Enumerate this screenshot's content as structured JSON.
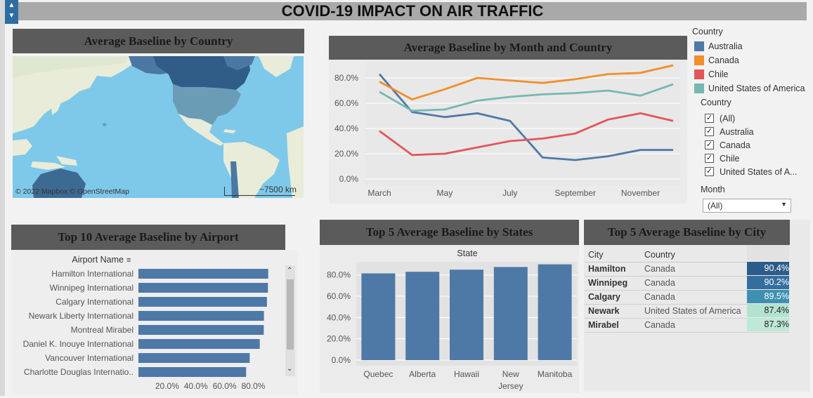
{
  "dashboard_title": "COVID-19 IMPACT ON AIR TRAFFIC",
  "map": {
    "title": "Average Baseline by Country",
    "attribution": "© 2022 Mapbox © OpenStreetMap",
    "scale": "~7500 km"
  },
  "legend": {
    "title": "Country",
    "items": [
      {
        "label": "Australia",
        "color": "#4e79a7"
      },
      {
        "label": "Canada",
        "color": "#f28e2b"
      },
      {
        "label": "Chile",
        "color": "#e15759"
      },
      {
        "label": "United States of America",
        "color": "#76b7b2"
      }
    ]
  },
  "country_filter": {
    "title": "Country",
    "items": [
      "(All)",
      "Australia",
      "Canada",
      "Chile",
      "United States of A..."
    ]
  },
  "month_filter": {
    "title": "Month",
    "value": "(All)"
  },
  "line_chart_title": "Average Baseline by Month and Country",
  "airport_chart_title": "Top 10 Average Baseline by Airport",
  "airport_axis_header": "Airport Name",
  "states_chart_title": "Top 5 Average Baseline by States",
  "states_axis_header": "State",
  "city_table": {
    "title": "Top 5 Average Baseline by City",
    "headers": [
      "City",
      "Country"
    ],
    "rows": [
      {
        "city": "Hamilton",
        "country": "Canada",
        "value": "90.4%",
        "color": "#2b5c8a"
      },
      {
        "city": "Winnipeg",
        "country": "Canada",
        "value": "90.2%",
        "color": "#356d9e"
      },
      {
        "city": "Calgary",
        "country": "Canada",
        "value": "89.5%",
        "color": "#3f8fb0"
      },
      {
        "city": "Newark",
        "country": "United States of America",
        "value": "87.4%",
        "color": "#b3e3cf"
      },
      {
        "city": "Mirabel",
        "country": "Canada",
        "value": "87.3%",
        "color": "#bfe8d6"
      }
    ]
  },
  "chart_data": [
    {
      "type": "line",
      "title": "Average Baseline by Month and Country",
      "x": [
        "March",
        "April",
        "May",
        "June",
        "July",
        "August",
        "September",
        "October",
        "November",
        "December"
      ],
      "x_tick_labels": [
        "March",
        "May",
        "July",
        "September",
        "November"
      ],
      "y_ticks": [
        "0.0%",
        "20.0%",
        "40.0%",
        "60.0%",
        "80.0%"
      ],
      "ylim": [
        0,
        0.9
      ],
      "grid": true,
      "series": [
        {
          "name": "Australia",
          "color": "#4e79a7",
          "values": [
            0.83,
            0.53,
            0.49,
            0.52,
            0.46,
            0.17,
            0.15,
            0.18,
            0.23,
            0.23
          ]
        },
        {
          "name": "Canada",
          "color": "#f28e2b",
          "values": [
            0.77,
            0.63,
            0.71,
            0.8,
            0.78,
            0.76,
            0.79,
            0.83,
            0.84,
            0.9
          ]
        },
        {
          "name": "Chile",
          "color": "#e15759",
          "values": [
            0.38,
            0.19,
            0.2,
            0.25,
            0.3,
            0.32,
            0.36,
            0.47,
            0.52,
            0.46
          ]
        },
        {
          "name": "United States of America",
          "color": "#76b7b2",
          "values": [
            0.69,
            0.54,
            0.55,
            0.62,
            0.65,
            0.67,
            0.68,
            0.7,
            0.66,
            0.75
          ]
        }
      ]
    },
    {
      "type": "bar",
      "orientation": "horizontal",
      "title": "Top 10 Average Baseline by Airport",
      "categories": [
        "Hamilton International",
        "Winnipeg International",
        "Calgary International",
        "Newark Liberty International",
        "Montreal Mirabel",
        "Daniel K. Inouye International",
        "Vancouver International",
        "Charlotte Douglas Internatio.."
      ],
      "values": [
        0.904,
        0.902,
        0.895,
        0.874,
        0.873,
        0.845,
        0.775,
        0.75
      ],
      "x_ticks": [
        "20.0%",
        "40.0%",
        "60.0%",
        "80.0%"
      ],
      "xlim": [
        0,
        0.92
      ],
      "color": "#4e79a7"
    },
    {
      "type": "bar",
      "title": "Top 5 Average Baseline by States",
      "categories": [
        "Quebec",
        "Alberta",
        "Hawaii",
        "New Jersey",
        "Manitoba"
      ],
      "category_lines": [
        [
          "Quebec"
        ],
        [
          "Alberta"
        ],
        [
          "Hawaii"
        ],
        [
          "New",
          "Jersey"
        ],
        [
          "Manitoba"
        ]
      ],
      "values": [
        0.815,
        0.83,
        0.85,
        0.875,
        0.9
      ],
      "y_ticks": [
        "0.0%",
        "20.0%",
        "40.0%",
        "60.0%",
        "80.0%"
      ],
      "ylim": [
        0,
        0.95
      ],
      "color": "#4e79a7"
    }
  ]
}
